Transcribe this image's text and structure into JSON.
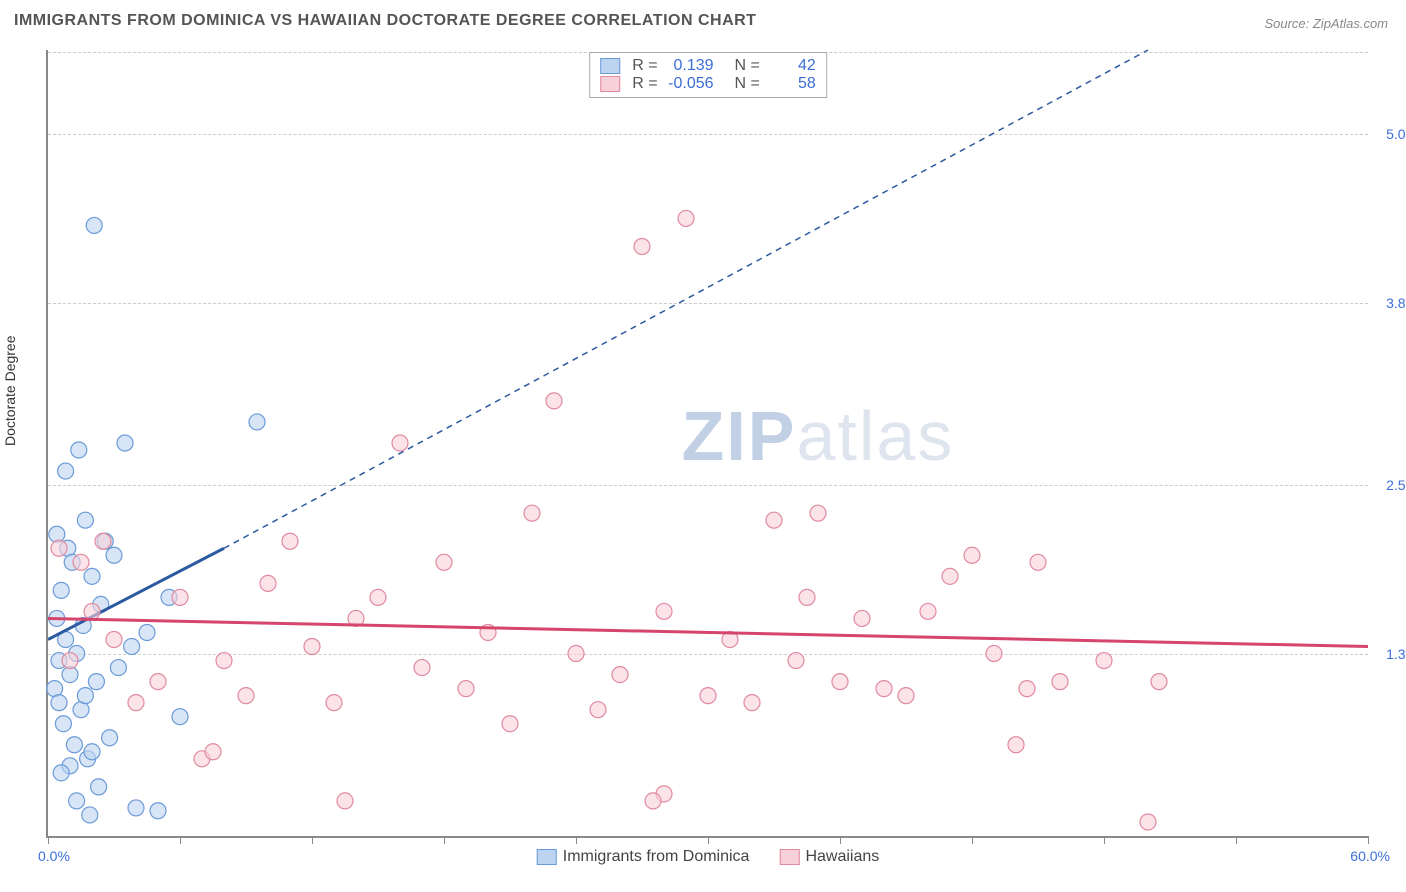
{
  "title": "IMMIGRANTS FROM DOMINICA VS HAWAIIAN DOCTORATE DEGREE CORRELATION CHART",
  "source": "Source: ZipAtlas.com",
  "watermark_a": "ZIP",
  "watermark_b": "atlas",
  "y_axis_label": "Doctorate Degree",
  "chart": {
    "type": "scatter",
    "xlim": [
      0,
      60
    ],
    "ylim": [
      0,
      5.6
    ],
    "x_min_label": "0.0%",
    "x_max_label": "60.0%",
    "y_ticks": [
      1.3,
      2.5,
      3.8,
      5.0
    ],
    "y_tick_labels": [
      "1.3%",
      "2.5%",
      "3.8%",
      "5.0%"
    ],
    "x_tick_positions": [
      0,
      6,
      12,
      18,
      24,
      30,
      36,
      42,
      48,
      54,
      60
    ],
    "grid_color": "#cccccc",
    "background_color": "#ffffff",
    "marker_radius": 8,
    "marker_stroke_width": 1.2,
    "trend_solid_width": 3,
    "trend_dash_width": 1.5,
    "trend_dash": "6,5"
  },
  "series": [
    {
      "key": "dominica",
      "label": "Immigrants from Dominica",
      "fill": "#bcd4f0",
      "stroke": "#6a9bd8",
      "line_color": "#2c5aa0",
      "r_value": "0.139",
      "n_value": "42",
      "trend_solid": {
        "x1": 0,
        "y1": 1.4,
        "x2": 8,
        "y2": 2.05
      },
      "trend_dash": {
        "x1": 8,
        "y1": 2.05,
        "x2": 50,
        "y2": 5.6
      },
      "points": [
        [
          0.3,
          1.05
        ],
        [
          0.4,
          1.55
        ],
        [
          0.5,
          0.95
        ],
        [
          0.6,
          1.75
        ],
        [
          0.7,
          0.8
        ],
        [
          0.8,
          1.4
        ],
        [
          0.9,
          2.05
        ],
        [
          1.0,
          1.15
        ],
        [
          1.1,
          1.95
        ],
        [
          1.2,
          0.65
        ],
        [
          1.3,
          1.3
        ],
        [
          1.4,
          2.75
        ],
        [
          1.5,
          0.9
        ],
        [
          1.6,
          1.5
        ],
        [
          1.7,
          2.25
        ],
        [
          1.8,
          0.55
        ],
        [
          1.9,
          0.15
        ],
        [
          2.0,
          1.85
        ],
        [
          2.1,
          4.35
        ],
        [
          2.2,
          1.1
        ],
        [
          2.3,
          0.35
        ],
        [
          2.4,
          1.65
        ],
        [
          2.6,
          2.1
        ],
        [
          2.8,
          0.7
        ],
        [
          3.0,
          2.0
        ],
        [
          3.2,
          1.2
        ],
        [
          3.5,
          2.8
        ],
        [
          4.0,
          0.2
        ],
        [
          4.5,
          1.45
        ],
        [
          5.0,
          0.18
        ],
        [
          5.5,
          1.7
        ],
        [
          6.0,
          0.85
        ],
        [
          1.0,
          0.5
        ],
        [
          1.3,
          0.25
        ],
        [
          0.6,
          0.45
        ],
        [
          0.8,
          2.6
        ],
        [
          0.5,
          1.25
        ],
        [
          1.7,
          1.0
        ],
        [
          2.0,
          0.6
        ],
        [
          0.4,
          2.15
        ],
        [
          3.8,
          1.35
        ],
        [
          9.5,
          2.95
        ]
      ]
    },
    {
      "key": "hawaiians",
      "label": "Hawaiians",
      "fill": "#f8d0da",
      "stroke": "#e08aa0",
      "line_color": "#d6456b",
      "r_value": "-0.056",
      "n_value": "58",
      "trend_solid": {
        "x1": 0,
        "y1": 1.55,
        "x2": 60,
        "y2": 1.35
      },
      "trend_dash": null,
      "points": [
        [
          0.5,
          2.05
        ],
        [
          1.0,
          1.25
        ],
        [
          1.5,
          1.95
        ],
        [
          2.0,
          1.6
        ],
        [
          2.5,
          2.1
        ],
        [
          3.0,
          1.4
        ],
        [
          4.0,
          0.95
        ],
        [
          5.0,
          1.1
        ],
        [
          6.0,
          1.7
        ],
        [
          7.0,
          0.55
        ],
        [
          8.0,
          1.25
        ],
        [
          9.0,
          1.0
        ],
        [
          10.0,
          1.8
        ],
        [
          11.0,
          2.1
        ],
        [
          12.0,
          1.35
        ],
        [
          13.0,
          0.95
        ],
        [
          14.0,
          1.55
        ],
        [
          15.0,
          1.7
        ],
        [
          16.0,
          2.8
        ],
        [
          17.0,
          1.2
        ],
        [
          18.0,
          1.95
        ],
        [
          19.0,
          1.05
        ],
        [
          20.0,
          1.45
        ],
        [
          21.0,
          0.8
        ],
        [
          22.0,
          2.3
        ],
        [
          23.0,
          3.1
        ],
        [
          24.0,
          1.3
        ],
        [
          25.0,
          0.9
        ],
        [
          26.0,
          1.15
        ],
        [
          27.0,
          4.2
        ],
        [
          28.0,
          1.6
        ],
        [
          29.0,
          4.4
        ],
        [
          30.0,
          1.0
        ],
        [
          31.0,
          1.4
        ],
        [
          32.0,
          0.95
        ],
        [
          33.0,
          2.25
        ],
        [
          34.0,
          1.25
        ],
        [
          35.0,
          2.3
        ],
        [
          36.0,
          1.1
        ],
        [
          37.0,
          1.55
        ],
        [
          38.0,
          1.05
        ],
        [
          39.0,
          1.0
        ],
        [
          40.0,
          1.6
        ],
        [
          41.0,
          1.85
        ],
        [
          42.0,
          2.0
        ],
        [
          43.0,
          1.3
        ],
        [
          44.0,
          0.65
        ],
        [
          45.0,
          1.95
        ],
        [
          46.0,
          1.1
        ],
        [
          28.0,
          0.3
        ],
        [
          48.0,
          1.25
        ],
        [
          50.0,
          0.1
        ],
        [
          13.5,
          0.25
        ],
        [
          7.5,
          0.6
        ],
        [
          34.5,
          1.7
        ],
        [
          44.5,
          1.05
        ],
        [
          27.5,
          0.25
        ],
        [
          50.5,
          1.1
        ]
      ]
    }
  ],
  "stats_labels": {
    "r": "R =",
    "n": "N ="
  }
}
